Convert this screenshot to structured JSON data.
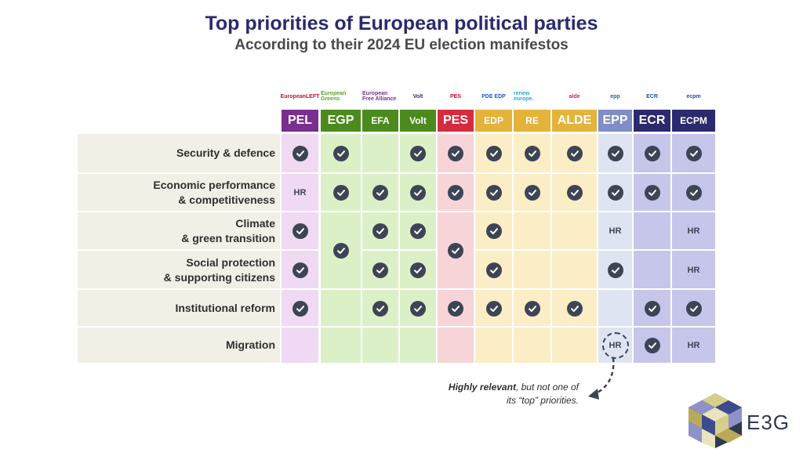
{
  "title": "Top priorities of European political parties",
  "subtitle": "According to their 2024 EU election manifestos",
  "chart_data": {
    "type": "table",
    "columns": [
      {
        "name": "PEL",
        "logo": "EuropeanLEFT",
        "header_color": "#7a2e8e",
        "bg": "#f0d9f2",
        "logo_color": "#c8102e"
      },
      {
        "name": "EGP",
        "logo": "European Greens",
        "header_color": "#4b8b1e",
        "bg": "#dcf0c8",
        "logo_color": "#57a32b"
      },
      {
        "name": "EFA",
        "logo": "European Free Alliance",
        "header_color": "#4b8b1e",
        "bg": "#dcf0c8",
        "logo_color": "#7a2e8e"
      },
      {
        "name": "Volt",
        "logo": "Volt",
        "header_color": "#4b8b1e",
        "bg": "#dcf0c8",
        "logo_color": "#4a2669"
      },
      {
        "name": "PES",
        "logo": "PES",
        "header_color": "#d62b3f",
        "bg": "#f6d4d8",
        "logo_color": "#e4002b"
      },
      {
        "name": "EDP",
        "logo": "PDE EDP",
        "header_color": "#e3b33a",
        "bg": "#fbedc6",
        "logo_color": "#1f5cbf"
      },
      {
        "name": "RE",
        "logo": "renew europe.",
        "header_color": "#e3b33a",
        "bg": "#fbedc6",
        "logo_color": "#2aa7d5"
      },
      {
        "name": "ALDE",
        "logo": "alde",
        "header_color": "#e3b33a",
        "bg": "#fbedc6",
        "logo_color": "#d2148c"
      },
      {
        "name": "EPP",
        "logo": "epp",
        "header_color": "#7f8ec8",
        "bg": "#dfe4f3",
        "logo_color": "#2a5db0"
      },
      {
        "name": "ECR",
        "logo": "ECR",
        "header_color": "#2b2a6e",
        "bg": "#c6c5ea",
        "logo_color": "#1f4fa3"
      },
      {
        "name": "ECPM",
        "logo": "ecpm",
        "header_color": "#2b2a6e",
        "bg": "#c6c5ea",
        "logo_color": "#1f4fa3"
      }
    ],
    "rows": [
      {
        "label": [
          "Security & defence"
        ]
      },
      {
        "label": [
          "Economic performance",
          "& competitiveness"
        ]
      },
      {
        "label": [
          "Climate",
          "& green transition"
        ]
      },
      {
        "label": [
          "Social protection",
          "& supporting citizens"
        ]
      },
      {
        "label": [
          "Institutional reform"
        ]
      },
      {
        "label": [
          "Migration"
        ]
      }
    ],
    "cells": [
      [
        "check",
        "check",
        "",
        "check",
        "check",
        "check",
        "check",
        "check",
        "check",
        "check",
        "check"
      ],
      [
        "HR",
        "check",
        "check",
        "check",
        "check",
        "check",
        "check",
        "check",
        "check",
        "check",
        "check"
      ],
      [
        "check",
        "check*",
        "check",
        "check",
        "check*",
        "check",
        "",
        "",
        "HR",
        "",
        "HR"
      ],
      [
        "check",
        "check*",
        "check",
        "check",
        "check*",
        "check",
        "",
        "",
        "check",
        "",
        "HR"
      ],
      [
        "check",
        "",
        "check",
        "check",
        "check",
        "check",
        "check",
        "check",
        "",
        "check",
        "check"
      ],
      [
        "",
        "",
        "",
        "",
        "",
        "",
        "",
        "",
        "HR",
        "check",
        "HR"
      ]
    ],
    "merged_note": "EGP and PES cover Climate & green transition and Social protection & supporting citizens with a single mark",
    "legend_note": "Highly relevant, but not one of its “top” priorities.",
    "legend_note_bold": "Highly relevant",
    "legend_note_rest": ", but not one of its “top” priorities.",
    "hr_label": "HR"
  },
  "brand": {
    "name": "E3G"
  }
}
